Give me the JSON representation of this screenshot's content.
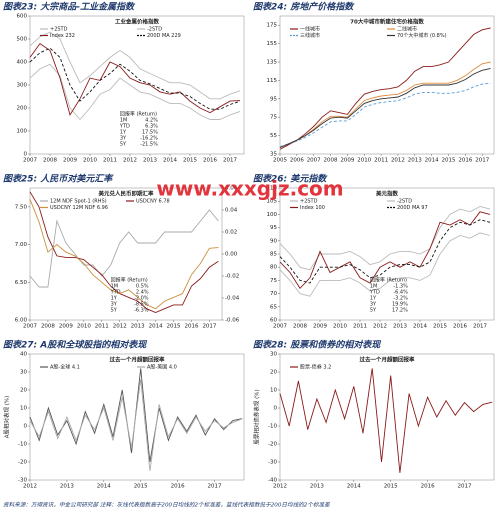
{
  "chart_data": [
    {
      "type": "line",
      "title": "图表23: 大宗商品-工业金属指数",
      "subtitle": "工业金属价格指数",
      "x": [
        2007,
        2007.5,
        2008,
        2008.5,
        2009,
        2009.5,
        2010,
        2010.5,
        2011,
        2011.5,
        2012,
        2012.5,
        2013,
        2013.5,
        2014,
        2014.5,
        2015,
        2015.5,
        2016,
        2016.5,
        2017,
        2017.5
      ],
      "xlim": [
        2007,
        2017.7
      ],
      "xticks": [
        2007,
        2008,
        2009,
        2010,
        2011,
        2012,
        2013,
        2014,
        2015,
        2016,
        2017
      ],
      "ylim": [
        0,
        600
      ],
      "yticks": [
        0,
        100,
        200,
        300,
        400,
        500,
        600
      ],
      "series": [
        {
          "name": "+2STD",
          "color": "#bbbbbb",
          "values": [
            470,
            510,
            530,
            500,
            400,
            310,
            340,
            380,
            420,
            450,
            420,
            370,
            350,
            330,
            310,
            310,
            300,
            270,
            240,
            240,
            260,
            275
          ]
        },
        {
          "name": "-2STD",
          "color": "#bbbbbb",
          "values": [
            330,
            370,
            390,
            340,
            200,
            150,
            200,
            260,
            280,
            330,
            300,
            270,
            260,
            240,
            220,
            220,
            200,
            170,
            150,
            150,
            170,
            185
          ]
        },
        {
          "name": "Index  232",
          "color": "#8b1a1a",
          "values": [
            420,
            480,
            450,
            330,
            170,
            240,
            330,
            320,
            400,
            380,
            330,
            310,
            300,
            270,
            260,
            270,
            230,
            200,
            180,
            205,
            230,
            232
          ]
        },
        {
          "name": "200D MA  229",
          "color": "#111111",
          "dash": true,
          "values": [
            400,
            440,
            460,
            420,
            300,
            230,
            270,
            320,
            350,
            390,
            360,
            320,
            305,
            285,
            265,
            265,
            250,
            220,
            195,
            195,
            215,
            229
          ]
        }
      ],
      "stats": {
        "title": "回报率 (Return)",
        "rows": [
          {
            "label": "1M",
            "value": "4.2%"
          },
          {
            "label": "YTD",
            "value": "6.3%"
          },
          {
            "label": "1Y",
            "value": "17.5%"
          },
          {
            "label": "3Y",
            "value": "-16.2%"
          },
          {
            "label": "5Y",
            "value": "-21.5%"
          }
        ]
      }
    },
    {
      "type": "line",
      "title": "图表24: 房地产价格指数",
      "subtitle": "70大中城市新建住宅价格指数",
      "x": [
        2005,
        2005.5,
        2006,
        2006.5,
        2007,
        2007.5,
        2008,
        2008.5,
        2009,
        2009.5,
        2010,
        2010.5,
        2011,
        2011.5,
        2012,
        2012.5,
        2013,
        2013.5,
        2014,
        2014.5,
        2015,
        2015.5,
        2016,
        2016.5,
        2017,
        2017.5
      ],
      "xlim": [
        2005,
        2017.7
      ],
      "xticks": [
        2005,
        2006,
        2007,
        2008,
        2009,
        2010,
        2011,
        2012,
        2013,
        2014,
        2015,
        2016,
        2017
      ],
      "ylim": [
        35,
        185
      ],
      "yticks": [
        35,
        55,
        75,
        95,
        115,
        135,
        155,
        175
      ],
      "series": [
        {
          "name": "一线城市",
          "color": "#8b1a1a",
          "values": [
            40,
            45,
            50,
            57,
            65,
            75,
            82,
            80,
            78,
            90,
            100,
            103,
            105,
            106,
            108,
            115,
            125,
            130,
            130,
            132,
            135,
            145,
            155,
            165,
            170,
            172
          ]
        },
        {
          "name": "二线城市",
          "color": "#e08a3c",
          "values": [
            42,
            46,
            50,
            55,
            62,
            70,
            76,
            76,
            75,
            84,
            93,
            96,
            98,
            99,
            100,
            104,
            110,
            112,
            112,
            112,
            112,
            115,
            120,
            127,
            133,
            135
          ]
        },
        {
          "name": "三线城市",
          "color": "#5b9bd5",
          "dash": true,
          "values": [
            43,
            46,
            49,
            53,
            58,
            64,
            70,
            71,
            71,
            78,
            86,
            89,
            91,
            92,
            93,
            96,
            100,
            102,
            102,
            101,
            101,
            102,
            104,
            108,
            111,
            112
          ]
        },
        {
          "name": "70个大中城市 (0.8%)",
          "color": "#333333",
          "values": [
            42,
            46,
            50,
            55,
            61,
            68,
            74,
            75,
            74,
            82,
            90,
            93,
            95,
            96,
            97,
            101,
            107,
            110,
            110,
            110,
            110,
            112,
            116,
            122,
            126,
            128
          ]
        }
      ]
    },
    {
      "type": "line",
      "title": "图表25: 人民币对美元汇率",
      "subtitle": "美元兑人民币即期汇率",
      "x": [
        2007,
        2007.5,
        2008,
        2008.5,
        2009,
        2009.5,
        2010,
        2010.5,
        2011,
        2011.5,
        2012,
        2012.5,
        2013,
        2013.5,
        2014,
        2014.5,
        2015,
        2015.5,
        2016,
        2016.5,
        2017,
        2017.5
      ],
      "xlim": [
        2007,
        2017.7
      ],
      "xticks": [
        2007,
        2008,
        2009,
        2010,
        2011,
        2012,
        2013,
        2014,
        2015,
        2016,
        2017
      ],
      "ylim": [
        6.0,
        7.75
      ],
      "yticks": [
        {
          "value": 6,
          "label": "6.00"
        },
        {
          "value": 6.5,
          "label": "6.50"
        },
        {
          "value": 7,
          "label": "7.00"
        },
        {
          "value": 7.5,
          "label": "7.50"
        }
      ],
      "y2lim": [
        -0.06,
        0.06
      ],
      "y2ticks": [
        -0.06,
        -0.04,
        -0.02,
        {
          "value": 0,
          "label": "0.00"
        },
        0.02,
        0.04,
        0.06
      ],
      "series": [
        {
          "name": "12M NDF Spot-1 (RHS)",
          "color": "#aaaaaa",
          "axis": "y2",
          "values": [
            -0.02,
            -0.03,
            -0.03,
            0.03,
            0.01,
            0.0,
            -0.01,
            -0.01,
            -0.02,
            -0.01,
            0.01,
            0.02,
            0.01,
            0.01,
            0.01,
            0.02,
            0.02,
            0.02,
            0.02,
            0.03,
            0.04,
            0.03
          ]
        },
        {
          "name": "USDCNY  6.78",
          "color": "#8b1a1a",
          "values": [
            7.7,
            7.5,
            7.1,
            6.85,
            6.83,
            6.83,
            6.8,
            6.7,
            6.6,
            6.45,
            6.35,
            6.3,
            6.25,
            6.15,
            6.1,
            6.15,
            6.2,
            6.2,
            6.45,
            6.55,
            6.7,
            6.78
          ]
        },
        {
          "name": "USDCNY 12M NDF  6.96",
          "color": "#c8913c",
          "values": [
            7.6,
            7.3,
            6.9,
            7.0,
            6.9,
            6.85,
            6.75,
            6.6,
            6.5,
            6.4,
            6.35,
            6.4,
            6.3,
            6.2,
            6.15,
            6.25,
            6.3,
            6.35,
            6.6,
            6.75,
            6.95,
            6.96
          ]
        }
      ],
      "stats": {
        "title": "回报率 (Return)",
        "rows": [
          {
            "label": "1M",
            "value": "0.5%"
          },
          {
            "label": "YTD",
            "value": "2.4%"
          },
          {
            "label": "1Y",
            "value": "-2.0%"
          },
          {
            "label": "3Y",
            "value": "-8.5%"
          },
          {
            "label": "5Y",
            "value": "-6.3%"
          }
        ]
      }
    },
    {
      "type": "line",
      "title": "图表26: 美元指数",
      "subtitle": "美元指数",
      "x": [
        2007,
        2007.5,
        2008,
        2008.5,
        2009,
        2009.5,
        2010,
        2010.5,
        2011,
        2011.5,
        2012,
        2012.5,
        2013,
        2013.5,
        2014,
        2014.5,
        2015,
        2015.5,
        2016,
        2016.5,
        2017,
        2017.5
      ],
      "xlim": [
        2007,
        2017.7
      ],
      "xticks": [
        2007,
        2008,
        2009,
        2010,
        2011,
        2012,
        2013,
        2014,
        2015,
        2016,
        2017
      ],
      "ylim": [
        60,
        110
      ],
      "yticks": [
        60,
        65,
        70,
        75,
        80,
        85,
        90,
        95,
        100,
        105,
        110
      ],
      "series": [
        {
          "name": "+2STD",
          "color": "#bbbbbb",
          "values": [
            89,
            85,
            80,
            79,
            85,
            85,
            85,
            86,
            84,
            81,
            82,
            85,
            86,
            86,
            85,
            87,
            95,
            100,
            102,
            101,
            103,
            102
          ]
        },
        {
          "name": "-2STD",
          "color": "#bbbbbb",
          "values": [
            79,
            75,
            70,
            69,
            75,
            75,
            75,
            76,
            74,
            71,
            72,
            75,
            76,
            76,
            75,
            77,
            85,
            90,
            92,
            91,
            93,
            92
          ]
        },
        {
          "name": "Index  100",
          "color": "#8b1a1a",
          "values": [
            82,
            78,
            72,
            76,
            86,
            78,
            80,
            82,
            76,
            74,
            80,
            82,
            80,
            82,
            80,
            87,
            97,
            96,
            98,
            96,
            101,
            100
          ]
        },
        {
          "name": "200D MA  97",
          "color": "#111111",
          "dash": true,
          "values": [
            84,
            80,
            75,
            74,
            80,
            80,
            80,
            81,
            79,
            76,
            77,
            80,
            81,
            81,
            80,
            82,
            90,
            95,
            97,
            96,
            98,
            97
          ]
        }
      ],
      "stats": {
        "title": "回报率 (Return)",
        "rows": [
          {
            "label": "1M",
            "value": "-1.3%"
          },
          {
            "label": "YTD",
            "value": "-6.4%"
          },
          {
            "label": "1Y",
            "value": "-3.2%"
          },
          {
            "label": "3Y",
            "value": "19.9%"
          },
          {
            "label": "5Y",
            "value": "17.2%"
          }
        ]
      }
    },
    {
      "type": "line",
      "title": "图表27: A股和全球股指的相对表现",
      "subtitle": "过去一个月超额回报率",
      "y_label": "A股相对表现 (%)",
      "x": [
        2012,
        2012.25,
        2012.5,
        2012.75,
        2013,
        2013.25,
        2013.5,
        2013.75,
        2014,
        2014.25,
        2014.5,
        2014.75,
        2015,
        2015.25,
        2015.5,
        2015.75,
        2016,
        2016.25,
        2016.5,
        2016.75,
        2017,
        2017.25,
        2017.5,
        2017.75
      ],
      "xlim": [
        2012,
        2017.8
      ],
      "xticks": [
        2012,
        2013,
        2014,
        2015,
        2016,
        2017
      ],
      "ylim": [
        -30,
        40
      ],
      "yticks": [
        -30,
        -20,
        -10,
        0,
        10,
        20,
        30,
        40
      ],
      "series": [
        {
          "name": "A股-全球  4.1",
          "color": "#555555",
          "values": [
            5,
            -8,
            10,
            -5,
            3,
            -10,
            8,
            -4,
            12,
            -6,
            20,
            -15,
            32,
            -20,
            10,
            -8,
            5,
            -3,
            6,
            -5,
            4,
            -2,
            3,
            4.1
          ]
        },
        {
          "name": "A股-美国  4.0",
          "color": "#aaaaaa",
          "values": [
            3,
            -6,
            8,
            -7,
            5,
            -8,
            6,
            -2,
            10,
            -8,
            16,
            -12,
            26,
            -25,
            12,
            -6,
            4,
            -4,
            5,
            -3,
            3,
            -1,
            2,
            4.0
          ]
        }
      ]
    },
    {
      "type": "line",
      "title": "图表28: 股票和债券的相对表现",
      "subtitle": "过去一个月超额回报率",
      "y_label": "股票相对债券表现 (%)",
      "x": [
        2012,
        2012.25,
        2012.5,
        2012.75,
        2013,
        2013.25,
        2013.5,
        2013.75,
        2014,
        2014.25,
        2014.5,
        2014.75,
        2015,
        2015.25,
        2015.5,
        2015.75,
        2016,
        2016.25,
        2016.5,
        2016.75,
        2017,
        2017.25,
        2017.5,
        2017.75
      ],
      "xlim": [
        2012,
        2017.8
      ],
      "xticks": [
        2012,
        2013,
        2014,
        2015,
        2016,
        2017
      ],
      "ylim": [
        -40,
        30
      ],
      "yticks": [
        -40,
        -30,
        -20,
        -10,
        0,
        10,
        20,
        30
      ],
      "series": [
        {
          "name": "股票-债券  3.2",
          "color": "#8b1a1a",
          "values": [
            8,
            -10,
            15,
            -12,
            5,
            -8,
            10,
            -6,
            12,
            -14,
            22,
            -30,
            18,
            -36,
            8,
            -10,
            6,
            -5,
            4,
            -4,
            3,
            -2,
            2,
            3.2
          ]
        }
      ]
    }
  ],
  "watermark": "www.xxxgjz.com",
  "footer": "资料来源：万得资讯，中金公司研究部    注释：灰线代表指数高于200日均线的2个标准差，蓝线代表指数低于200日均线的2个标准差"
}
